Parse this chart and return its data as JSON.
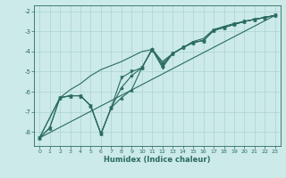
{
  "xlabel": "Humidex (Indice chaleur)",
  "xlim": [
    -0.5,
    23.5
  ],
  "ylim": [
    -8.7,
    -1.7
  ],
  "yticks": [
    -8,
    -7,
    -6,
    -5,
    -4,
    -3,
    -2
  ],
  "xticks": [
    0,
    1,
    2,
    3,
    4,
    5,
    6,
    7,
    8,
    9,
    10,
    11,
    12,
    13,
    14,
    15,
    16,
    17,
    18,
    19,
    20,
    21,
    22,
    23
  ],
  "background_color": "#cceae8",
  "grid_color": "#aad4d0",
  "line_color": "#2a6b60",
  "lines": [
    {
      "x": [
        0,
        1,
        2,
        3,
        4,
        5,
        6,
        7,
        8,
        9,
        10,
        11,
        12,
        13,
        14,
        15,
        16,
        17,
        18,
        19,
        20,
        21,
        22,
        23
      ],
      "y": [
        -8.3,
        -7.8,
        -6.3,
        -6.2,
        -6.2,
        -6.7,
        -8.1,
        -6.8,
        -6.3,
        -5.9,
        -4.8,
        -3.9,
        -4.7,
        -4.1,
        -3.8,
        -3.55,
        -3.45,
        -2.95,
        -2.8,
        -2.65,
        -2.5,
        -2.4,
        -2.3,
        -2.2
      ],
      "marker": "^",
      "ms": 2.5
    },
    {
      "x": [
        0,
        1,
        2,
        3,
        4,
        5,
        6,
        7,
        8,
        9,
        10,
        11,
        12,
        13,
        14,
        15,
        16,
        17,
        18,
        19,
        20,
        21,
        22,
        23
      ],
      "y": [
        -8.3,
        -7.8,
        -6.3,
        -6.2,
        -6.2,
        -6.7,
        -8.1,
        -6.8,
        -5.3,
        -5.0,
        -4.8,
        -3.9,
        -4.8,
        -4.1,
        -3.8,
        -3.55,
        -3.45,
        -2.95,
        -2.8,
        -2.65,
        -2.5,
        -2.4,
        -2.3,
        -2.2
      ],
      "marker": "v",
      "ms": 2.5
    },
    {
      "x": [
        0,
        2,
        3,
        4,
        5,
        6,
        7,
        8,
        9,
        10,
        11,
        12,
        13,
        14,
        15,
        16,
        17,
        18,
        19,
        20,
        21,
        22,
        23
      ],
      "y": [
        -8.3,
        -6.3,
        -6.2,
        -6.2,
        -6.7,
        -8.1,
        -6.8,
        -5.8,
        -5.2,
        -4.8,
        -3.85,
        -4.6,
        -4.1,
        -3.8,
        -3.55,
        -3.45,
        -2.95,
        -2.8,
        -2.65,
        -2.5,
        -2.4,
        -2.3,
        -2.2
      ],
      "marker": "D",
      "ms": 1.8
    },
    {
      "x": [
        0,
        23
      ],
      "y": [
        -8.3,
        -2.2
      ],
      "marker": null,
      "ms": 0
    },
    {
      "x": [
        0,
        2,
        3,
        4,
        5,
        6,
        7,
        8,
        9,
        10,
        11,
        12,
        13,
        14,
        15,
        16,
        17,
        18,
        19,
        20,
        21,
        22,
        23
      ],
      "y": [
        -8.3,
        -6.3,
        -5.9,
        -5.6,
        -5.2,
        -4.9,
        -4.7,
        -4.5,
        -4.25,
        -4.0,
        -3.9,
        -4.5,
        -4.1,
        -3.8,
        -3.5,
        -3.35,
        -2.9,
        -2.75,
        -2.6,
        -2.5,
        -2.4,
        -2.3,
        -2.2
      ],
      "marker": null,
      "ms": 0
    }
  ]
}
